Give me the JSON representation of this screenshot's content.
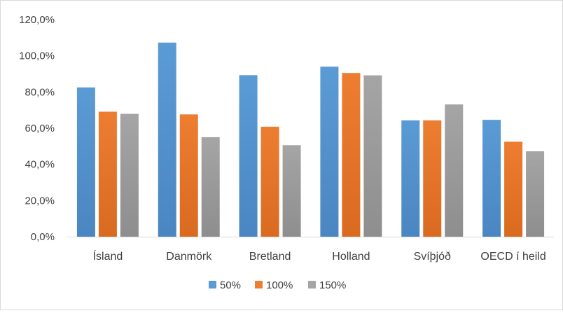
{
  "chart_data": {
    "type": "bar",
    "categories": [
      "Ísland",
      "Danmörk",
      "Bretland",
      "Holland",
      "Svíþjóð",
      "OECD í heild"
    ],
    "series": [
      {
        "name": "50%",
        "values": [
          82.5,
          107.3,
          89.3,
          94.0,
          64.3,
          64.6
        ]
      },
      {
        "name": "100%",
        "values": [
          69.1,
          67.6,
          60.8,
          90.5,
          64.3,
          52.5
        ]
      },
      {
        "name": "150%",
        "values": [
          67.9,
          55.0,
          50.6,
          89.2,
          73.1,
          47.2
        ]
      }
    ],
    "y_ticks": [
      "0,0%",
      "20,0%",
      "40,0%",
      "60,0%",
      "80,0%",
      "100,0%",
      "120,0%"
    ],
    "ylim": [
      0,
      120
    ],
    "ylabel_unit": "%",
    "grid": false,
    "legend_position": "bottom"
  },
  "colors": {
    "series": [
      "#5b9bd5",
      "#ed7d31",
      "#a5a5a5"
    ],
    "series_dark": [
      "#4a86c2",
      "#d96a20",
      "#8e8e8e"
    ],
    "axis": "#d9d9d9",
    "text": "#404040"
  }
}
